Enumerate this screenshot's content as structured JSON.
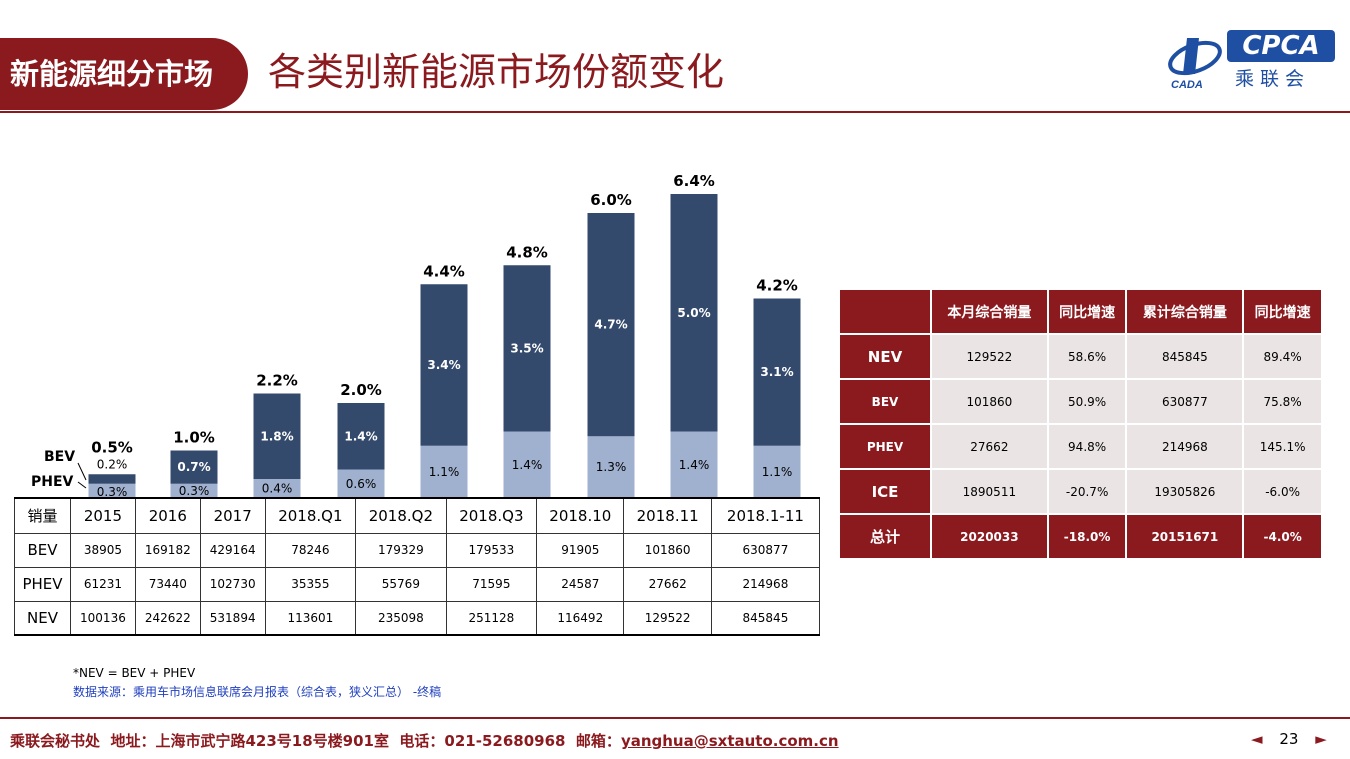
{
  "header": {
    "section": "新能源细分市场",
    "title": "各类别新能源市场份额变化",
    "logo": {
      "brand": "CPCA",
      "brand_cn": "乘联会",
      "sub": "CADA"
    }
  },
  "chart_data": {
    "type": "bar",
    "stacked": true,
    "categories": [
      "2015",
      "2016",
      "2017",
      "2018.Q1",
      "2018.Q2",
      "2018.Q3",
      "2018.10",
      "2018.11",
      "2018.1-11"
    ],
    "series": [
      {
        "name": "PHEV",
        "values": [
          0.3,
          0.3,
          0.4,
          0.6,
          1.1,
          1.4,
          1.3,
          1.4,
          1.1
        ],
        "labels": [
          "0.3%",
          "0.3%",
          "0.4%",
          "0.6%",
          "1.1%",
          "1.4%",
          "1.3%",
          "1.4%",
          "1.1%"
        ],
        "color": "#a0b0cf"
      },
      {
        "name": "BEV",
        "values": [
          0.2,
          0.7,
          1.8,
          1.4,
          3.4,
          3.5,
          4.7,
          5.0,
          3.1
        ],
        "labels": [
          "0.2%",
          "0.7%",
          "1.8%",
          "1.4%",
          "3.4%",
          "3.5%",
          "4.7%",
          "5.0%",
          "3.1%"
        ],
        "color": "#344a6c"
      }
    ],
    "totals": [
      "0.5%",
      "1.0%",
      "2.2%",
      "2.0%",
      "4.4%",
      "4.8%",
      "6.0%",
      "6.4%",
      "4.2%"
    ],
    "total_values": [
      0.5,
      1.0,
      2.2,
      2.0,
      4.4,
      4.8,
      6.0,
      6.4,
      4.2
    ],
    "ylim": [
      0,
      6.6
    ],
    "grid": false
  },
  "sales_table": {
    "header": [
      "销量",
      "2015",
      "2016",
      "2017",
      "2018.Q1",
      "2018.Q2",
      "2018.Q3",
      "2018.10",
      "2018.11",
      "2018.1-11"
    ],
    "rows": [
      {
        "label": "BEV",
        "values": [
          "38905",
          "169182",
          "429164",
          "78246",
          "179329",
          "179533",
          "91905",
          "101860",
          "630877"
        ]
      },
      {
        "label": "PHEV",
        "values": [
          "61231",
          "73440",
          "102730",
          "35355",
          "55769",
          "71595",
          "24587",
          "27662",
          "214968"
        ]
      },
      {
        "label": "NEV",
        "values": [
          "100136",
          "242622",
          "531894",
          "113601",
          "235098",
          "251128",
          "116492",
          "129522",
          "845845"
        ]
      }
    ]
  },
  "summary_table": {
    "header": [
      "",
      "本月综合销量",
      "同比增速",
      "累计综合销量",
      "同比增速"
    ],
    "rows": [
      {
        "label": "NEV",
        "values": [
          "129522",
          "58.6%",
          "845845",
          "89.4%"
        ]
      },
      {
        "label": "BEV",
        "values": [
          "101860",
          "50.9%",
          "630877",
          "75.8%"
        ]
      },
      {
        "label": "PHEV",
        "values": [
          "27662",
          "94.8%",
          "214968",
          "145.1%"
        ]
      },
      {
        "label": "ICE",
        "values": [
          "1890511",
          "-20.7%",
          "19305826",
          "-6.0%"
        ]
      },
      {
        "label": "总计",
        "values": [
          "2020033",
          "-18.0%",
          "20151671",
          "-4.0%"
        ]
      }
    ]
  },
  "notes": {
    "formula": "*NEV = BEV + PHEV",
    "source": "数据来源：乘用车市场信息联席会月报表（综合表，狭义汇总） -终稿"
  },
  "footer": {
    "org": "乘联会秘书处",
    "address": "地址：上海市武宁路423号18号楼901室",
    "phone": "电话：021-52680968",
    "email_label": "邮箱：",
    "email": "yanghua@sxtauto.com.cn",
    "prev": "◄",
    "page": "23",
    "next": "►"
  }
}
